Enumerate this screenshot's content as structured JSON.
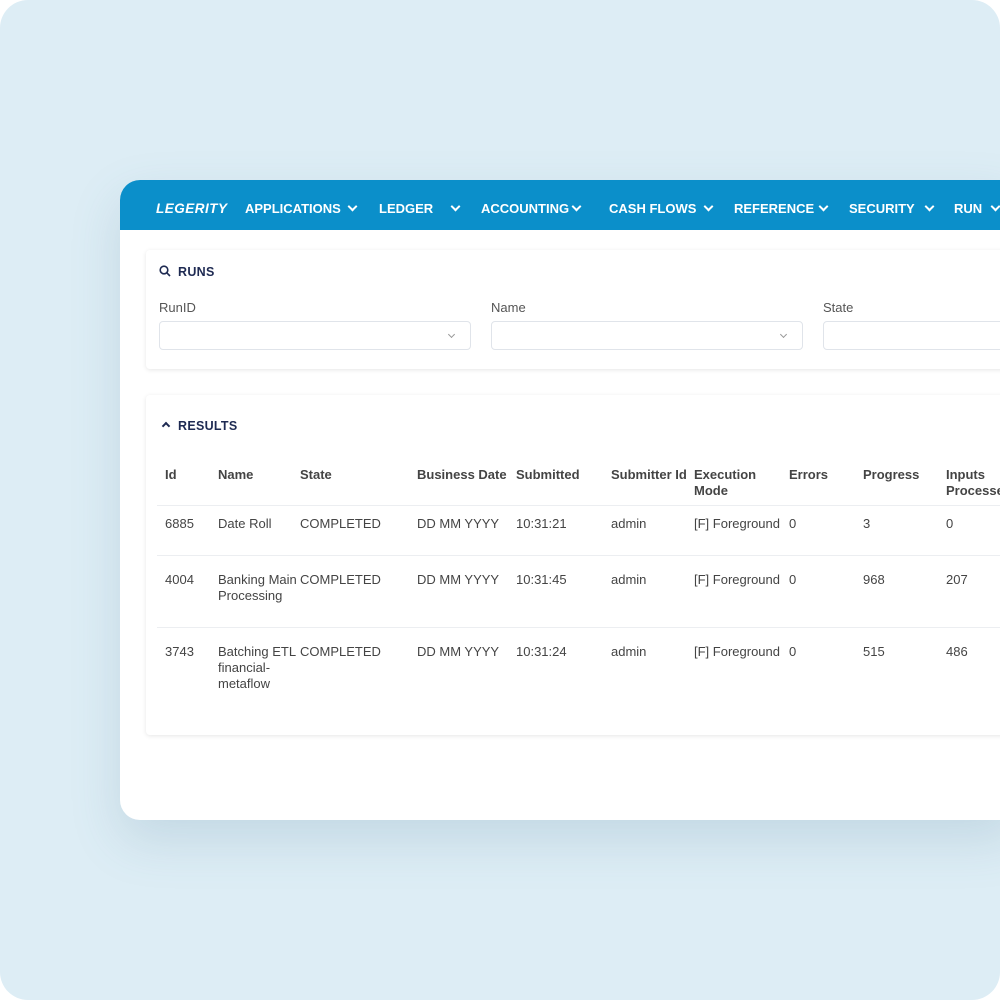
{
  "nav": {
    "logo": "LEGERITY",
    "items": [
      {
        "label": "APPLICATIONS"
      },
      {
        "label": "LEDGER"
      },
      {
        "label": "ACCOUNTING"
      },
      {
        "label": "CASH FLOWS"
      },
      {
        "label": "REFERENCE"
      },
      {
        "label": "SECURITY"
      },
      {
        "label": "RUN"
      }
    ]
  },
  "filters": {
    "title": "RUNS",
    "fields": [
      {
        "label": "RunID",
        "value": ""
      },
      {
        "label": "Name",
        "value": ""
      },
      {
        "label": "State",
        "value": ""
      }
    ]
  },
  "results": {
    "title": "RESULTS",
    "columns": [
      "Id",
      "Name",
      "State",
      "Business Date",
      "Submitted",
      "Submitter Id",
      "Execution Mode",
      "Errors",
      "Progress",
      "Inputs Processed"
    ],
    "rows": [
      [
        "6885",
        "Date Roll",
        "COMPLETED",
        "DD MM YYYY",
        "10:31:21",
        "admin",
        "[F] Foreground",
        "0",
        "3",
        "0"
      ],
      [
        "4004",
        "Banking Main Processing",
        "COMPLETED",
        "DD MM YYYY",
        "10:31:45",
        "admin",
        "[F] Foreground",
        "0",
        "968",
        "207"
      ],
      [
        "3743",
        "Batching ETL financial-metaflow",
        "COMPLETED",
        "DD MM YYYY",
        "10:31:24",
        "admin",
        "[F] Foreground",
        "0",
        "515",
        "486"
      ]
    ]
  },
  "colors": {
    "nav": "#0b8fca",
    "background": "#ddedf5",
    "title": "#1e2a52"
  }
}
